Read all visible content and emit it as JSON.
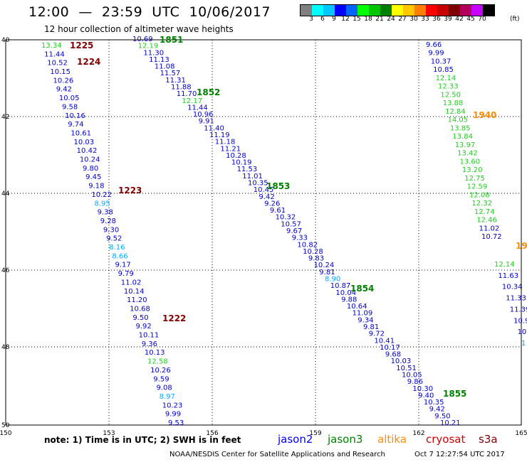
{
  "header": {
    "title": "12:00  —  23:59  UTC  10/06/2017",
    "subtitle": "12 hour collection of altimeter wave heights"
  },
  "legend": {
    "colors": [
      "#808080",
      "#00ffff",
      "#00c8ff",
      "#0000ff",
      "#0064ff",
      "#00ff00",
      "#00c800",
      "#008000",
      "#ffff00",
      "#ffc800",
      "#ff8000",
      "#ff0000",
      "#c80000",
      "#800000",
      "#b4005a",
      "#c800ff",
      "#000000"
    ],
    "labels": [
      "3",
      "6",
      "9",
      "12",
      "15",
      "18",
      "21",
      "24",
      "27",
      "30",
      "33",
      "36",
      "39",
      "42",
      "45",
      "70"
    ],
    "unit": "(ft)"
  },
  "axes": {
    "lon_labels": [
      "150",
      "153",
      "156",
      "159",
      "162",
      "165"
    ],
    "lat_labels": [
      "40",
      "42",
      "44",
      "46",
      "48",
      "50"
    ]
  },
  "satellite_colors": {
    "jason2": "#0000ff",
    "jason3": "#008000",
    "altika": "#ff8c00",
    "cryosat": "#cc0000",
    "s3a": "#800000"
  },
  "passes": [
    {
      "id": "pass-1",
      "values": [
        "13.34",
        "11.44",
        "10.52",
        "10.15",
        "10.26",
        "9.42",
        "10.05",
        "9.58",
        "10.16",
        "9.74",
        "10.61",
        "10.03",
        "10.42",
        "10.24",
        "9.80",
        "9.45",
        "9.18",
        "10.22",
        "8.95",
        "9.38",
        "9.28",
        "9.30",
        "9.52",
        "8.16",
        "8.66",
        "9.17",
        "9.79",
        "11.02",
        "10.14",
        "11.20",
        "10.68",
        "9.50",
        "9.92",
        "10.11",
        "9.36",
        "10.13",
        "12.58",
        "10.26",
        "9.59",
        "9.08",
        "8.97",
        "10.23",
        "9.99",
        "9.53"
      ]
    },
    {
      "id": "pass-2",
      "values": [
        "10.69",
        "12.19",
        "11.30",
        "11.13",
        "11.08",
        "11.57",
        "11.31",
        "11.88",
        "11.70",
        "12.17",
        "11.44",
        "10.96",
        "9.91",
        "11.40",
        "11.19",
        "11.18",
        "11.21",
        "10.28",
        "10.19",
        "11.53",
        "11.01",
        "10.35",
        "10.45",
        "9.42",
        "9.26",
        "9.61",
        "10.32",
        "10.57",
        "9.67",
        "9.33",
        "10.82",
        "10.28",
        "9.83",
        "10.24",
        "9.81",
        "8.90",
        "10.87",
        "10.04",
        "9.88",
        "10.64",
        "11.09",
        "9.34",
        "9.81",
        "9.72",
        "10.41",
        "10.17",
        "9.68",
        "10.03",
        "10.51",
        "10.05",
        "9.86",
        "10.30",
        "9.40",
        "10.35",
        "9.42",
        "9.50",
        "10.21"
      ]
    },
    {
      "id": "pass-3",
      "values": [
        "9.66",
        "9.99",
        "10.37",
        "10.85",
        "12.14",
        "12.33",
        "12.50",
        "13.88",
        "12.84",
        "14.05",
        "13.85",
        "13.84",
        "13.97",
        "13.42",
        "13.60",
        "13.20",
        "12.75",
        "12.59",
        "12.08",
        "12.32",
        "12.74",
        "12.46",
        "11.02",
        "10.72"
      ]
    },
    {
      "id": "pass-4",
      "values": [
        "12.14",
        "11.63",
        "10.34",
        "11.33",
        "11.39",
        "10.9",
        "10.",
        "1"
      ]
    }
  ],
  "time_labels": [
    {
      "text": "1225",
      "sat": "s3a"
    },
    {
      "text": "1224",
      "sat": "s3a"
    },
    {
      "text": "1223",
      "sat": "s3a"
    },
    {
      "text": "1222",
      "sat": "s3a"
    },
    {
      "text": "1851",
      "sat": "jason3"
    },
    {
      "text": "1852",
      "sat": "jason3"
    },
    {
      "text": "1853",
      "sat": "jason3"
    },
    {
      "text": "1854",
      "sat": "jason3"
    },
    {
      "text": "1855",
      "sat": "jason3"
    },
    {
      "text": "1940",
      "sat": "altika"
    },
    {
      "text": "19",
      "sat": "altika"
    }
  ],
  "footer": {
    "note": "note:  1) Time is in UTC;  2) SWH is in feet",
    "missions": [
      {
        "name": "jason2",
        "color": "#0000ff"
      },
      {
        "name": "jason3",
        "color": "#008000"
      },
      {
        "name": "altika",
        "color": "#ff8c00"
      },
      {
        "name": "cryosat",
        "color": "#cc0000"
      },
      {
        "name": "s3a",
        "color": "#800000"
      }
    ],
    "credit": "NOAA/NESDIS Center for Satellite Applications and Research",
    "timestamp": "Oct  7 12:27:54 UTC 2017"
  }
}
